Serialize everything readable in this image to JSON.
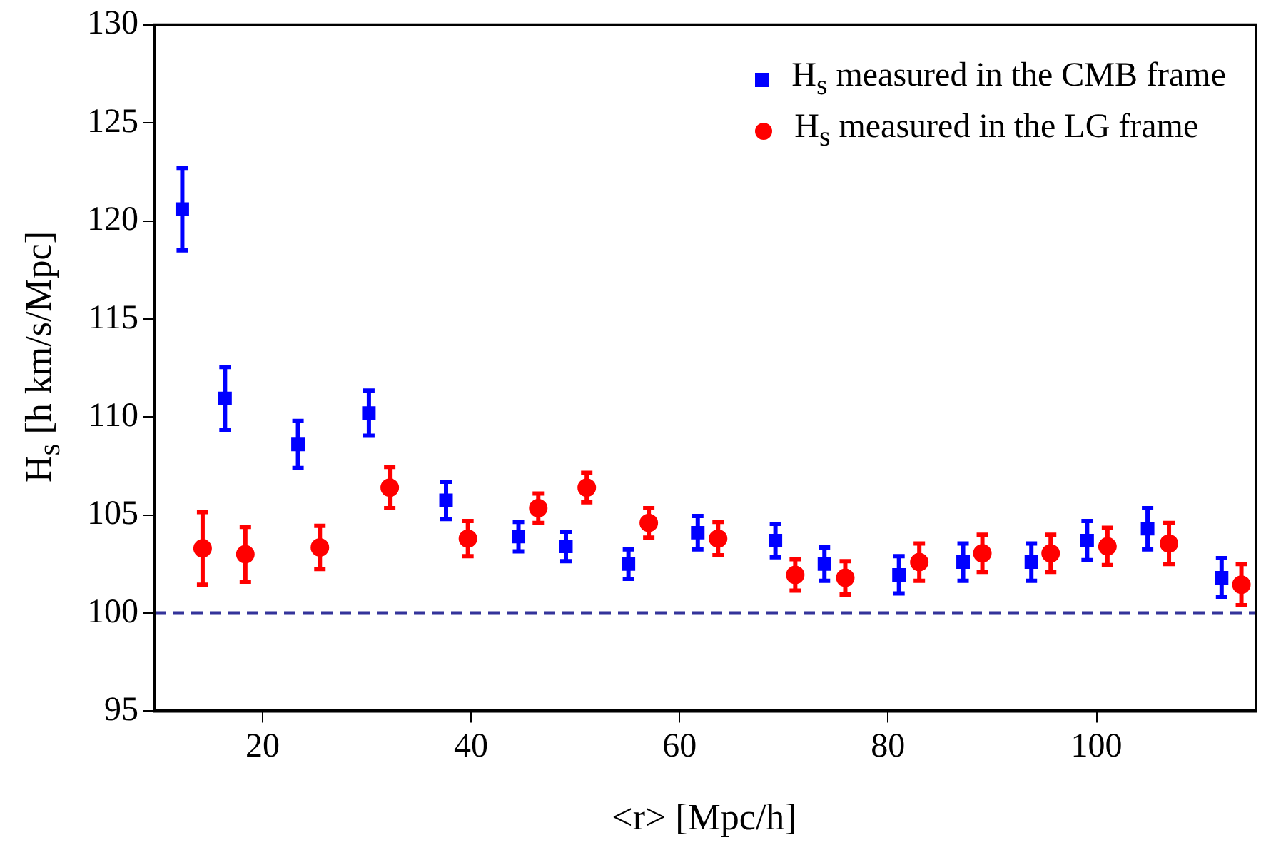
{
  "chart_data": {
    "type": "scatter",
    "xlabel": "<r> [Mpc/h]",
    "ylabel": "H$_{s}$  [h km/s/Mpc]",
    "xlim": [
      9.6,
      115.3
    ],
    "xticks": [
      20,
      40,
      60,
      80,
      100
    ],
    "ylim": [
      95,
      130
    ],
    "yticks": [
      95,
      100,
      105,
      110,
      115,
      120,
      125,
      130
    ],
    "grid": false,
    "legend": "top right",
    "series": [
      {
        "name": "H$_{s}$ measured in the CMB frame",
        "color": "#0000ff",
        "marker": "square",
        "x": [
          12.3,
          16.4,
          23.4,
          30.2,
          37.6,
          44.55,
          49.1,
          55.1,
          61.75,
          69.2,
          73.9,
          81.05,
          87.2,
          93.75,
          99.1,
          104.9,
          112.0
        ],
        "values": [
          120.6,
          110.95,
          108.6,
          110.2,
          105.75,
          103.9,
          103.4,
          102.5,
          104.1,
          103.7,
          102.5,
          101.95,
          102.6,
          102.6,
          103.7,
          104.3,
          101.8
        ],
        "errors": [
          2.1,
          1.6,
          1.2,
          1.15,
          0.95,
          0.75,
          0.75,
          0.75,
          0.85,
          0.85,
          0.85,
          0.95,
          0.95,
          0.95,
          1.0,
          1.05,
          1.0
        ]
      },
      {
        "name": "H$_{s}$ measured in the LG frame",
        "color": "#ff0000",
        "marker": "circle",
        "x": [
          14.25,
          18.35,
          25.5,
          32.2,
          39.7,
          46.45,
          51.1,
          57.05,
          63.7,
          71.1,
          75.9,
          83.0,
          89.05,
          95.6,
          101.05,
          106.95,
          113.9
        ],
        "values": [
          103.3,
          103.0,
          103.35,
          106.4,
          103.8,
          105.35,
          106.4,
          104.6,
          103.8,
          101.95,
          101.8,
          102.6,
          103.05,
          103.05,
          103.4,
          103.55,
          101.45
        ],
        "errors": [
          1.85,
          1.4,
          1.1,
          1.05,
          0.9,
          0.75,
          0.75,
          0.75,
          0.85,
          0.8,
          0.85,
          0.95,
          0.95,
          0.95,
          0.95,
          1.05,
          1.05
        ]
      }
    ],
    "ref_lines": [
      {
        "axis": "y",
        "value": 100,
        "color": "#33339a",
        "line_style": "dashed"
      }
    ]
  }
}
